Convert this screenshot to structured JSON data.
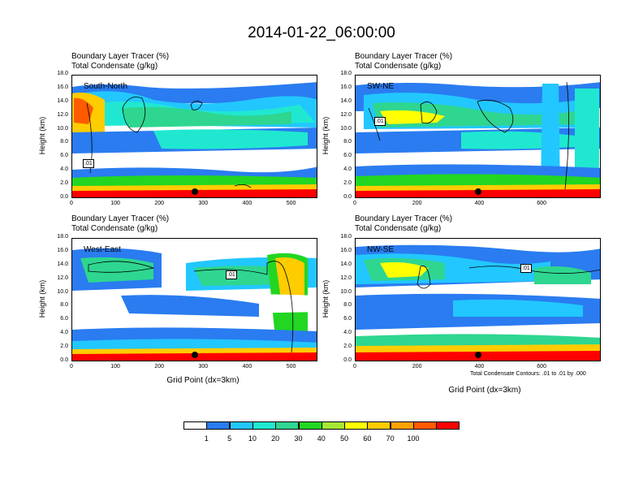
{
  "title": "2014-01-22_06:00:00",
  "subtitle_line1": "Boundary Layer Tracer    (%)",
  "subtitle_line2": "Total Condensate    (g/kg)",
  "ylabel": "Height (km)",
  "xlabel": "Grid Point (dx=3km)",
  "contour_note": "Total Condensate Contours: .01 to .01 by .000",
  "colorbar": {
    "labels": [
      "1",
      "5",
      "10",
      "20",
      "30",
      "40",
      "50",
      "60",
      "70",
      "100"
    ],
    "colors": [
      "#ffffff",
      "#2a7cf0",
      "#22c7ff",
      "#20e8d0",
      "#2ed690",
      "#22d622",
      "#a6e634",
      "#ffff00",
      "#ffcc00",
      "#ffa200",
      "#ff5a00",
      "#ff0000"
    ]
  },
  "chart_data": [
    {
      "type": "heatmap",
      "panel": "South-North",
      "label": "South-North",
      "ylim": [
        0,
        18
      ],
      "yticks": [
        "0.0",
        "2.0",
        "4.0",
        "6.0",
        "8.0",
        "10.0",
        "12.0",
        "14.0",
        "16.0",
        "18.0"
      ],
      "xlim": [
        0,
        560
      ],
      "xticks": [
        0,
        100,
        200,
        300,
        400,
        500
      ],
      "xticklabels": [
        "0",
        "100",
        "200",
        "300",
        "400",
        "500"
      ],
      "marker_x": 280,
      "contour_label": ".01"
    },
    {
      "type": "heatmap",
      "panel": "SW-NE",
      "label": "SW-NE",
      "ylim": [
        0,
        18
      ],
      "yticks": [
        "0.0",
        "2.0",
        "4.0",
        "6.0",
        "8.0",
        "10.0",
        "12.0",
        "14.0",
        "16.0",
        "18.0"
      ],
      "xlim": [
        0,
        790
      ],
      "xticks": [
        0,
        200,
        400,
        600
      ],
      "xticklabels": [
        "0",
        "200",
        "400",
        "600"
      ],
      "marker_x": 395,
      "contour_label": ".01"
    },
    {
      "type": "heatmap",
      "panel": "West-East",
      "label": "West-East",
      "ylim": [
        0,
        18
      ],
      "yticks": [
        "0.0",
        "2.0",
        "4.0",
        "6.0",
        "8.0",
        "10.0",
        "12.0",
        "14.0",
        "16.0",
        "18.0"
      ],
      "xlim": [
        0,
        560
      ],
      "xticks": [
        0,
        100,
        200,
        300,
        400,
        500
      ],
      "xticklabels": [
        "0",
        "100",
        "200",
        "300",
        "400",
        "500"
      ],
      "marker_x": 280,
      "contour_label": ".01"
    },
    {
      "type": "heatmap",
      "panel": "NW-SE",
      "label": "NW-SE",
      "ylim": [
        0,
        18
      ],
      "yticks": [
        "0.0",
        "2.0",
        "4.0",
        "6.0",
        "8.0",
        "10.0",
        "12.0",
        "14.0",
        "16.0",
        "18.0"
      ],
      "xlim": [
        0,
        790
      ],
      "xticks": [
        0,
        200,
        400,
        600
      ],
      "xticklabels": [
        "0",
        "200",
        "400",
        "600"
      ],
      "marker_x": 395,
      "contour_label": ".01"
    }
  ]
}
